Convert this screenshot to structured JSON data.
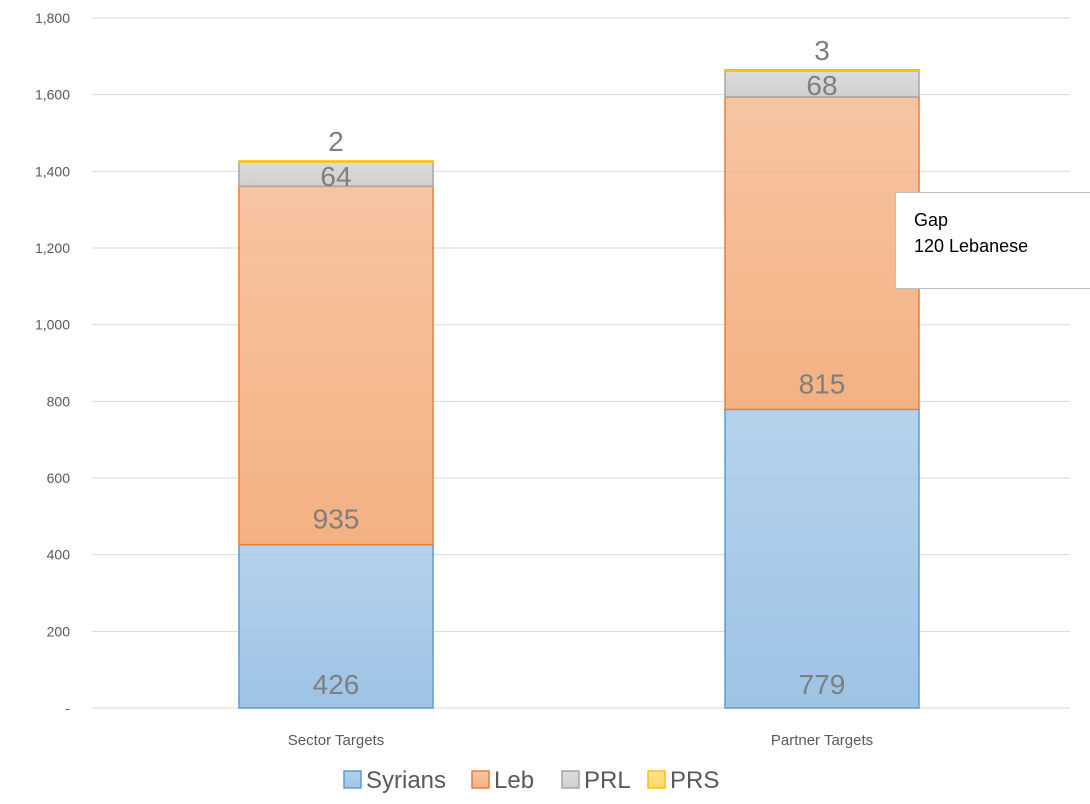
{
  "chart_data": {
    "type": "bar",
    "stacked": true,
    "categories": [
      "Sector Targets",
      "Partner Targets"
    ],
    "series": [
      {
        "name": "Syrians",
        "values": [
          426,
          779
        ],
        "color": "#9dc3e6",
        "stroke": "#5b9bd5"
      },
      {
        "name": "Leb",
        "values": [
          935,
          815
        ],
        "color": "#f4b183",
        "stroke": "#ed7d31"
      },
      {
        "name": "PRL",
        "values": [
          64,
          68
        ],
        "color": "#d0d0d0",
        "stroke": "#a5a5a5"
      },
      {
        "name": "PRS",
        "values": [
          2,
          3
        ],
        "color": "#ffd966",
        "stroke": "#ffc000"
      }
    ],
    "ylim": [
      0,
      1800
    ],
    "yticks": [
      0,
      200,
      400,
      600,
      800,
      1000,
      1200,
      1400,
      1600,
      1800
    ],
    "ytick_labels": [
      "-",
      "200",
      "400",
      "600",
      "800",
      "1,000",
      "1,200",
      "1,400",
      "1,600",
      "1,800"
    ],
    "grid": true,
    "legend_position": "bottom",
    "annotation": {
      "line1": "Gap",
      "line2": "120 Lebanese"
    }
  }
}
